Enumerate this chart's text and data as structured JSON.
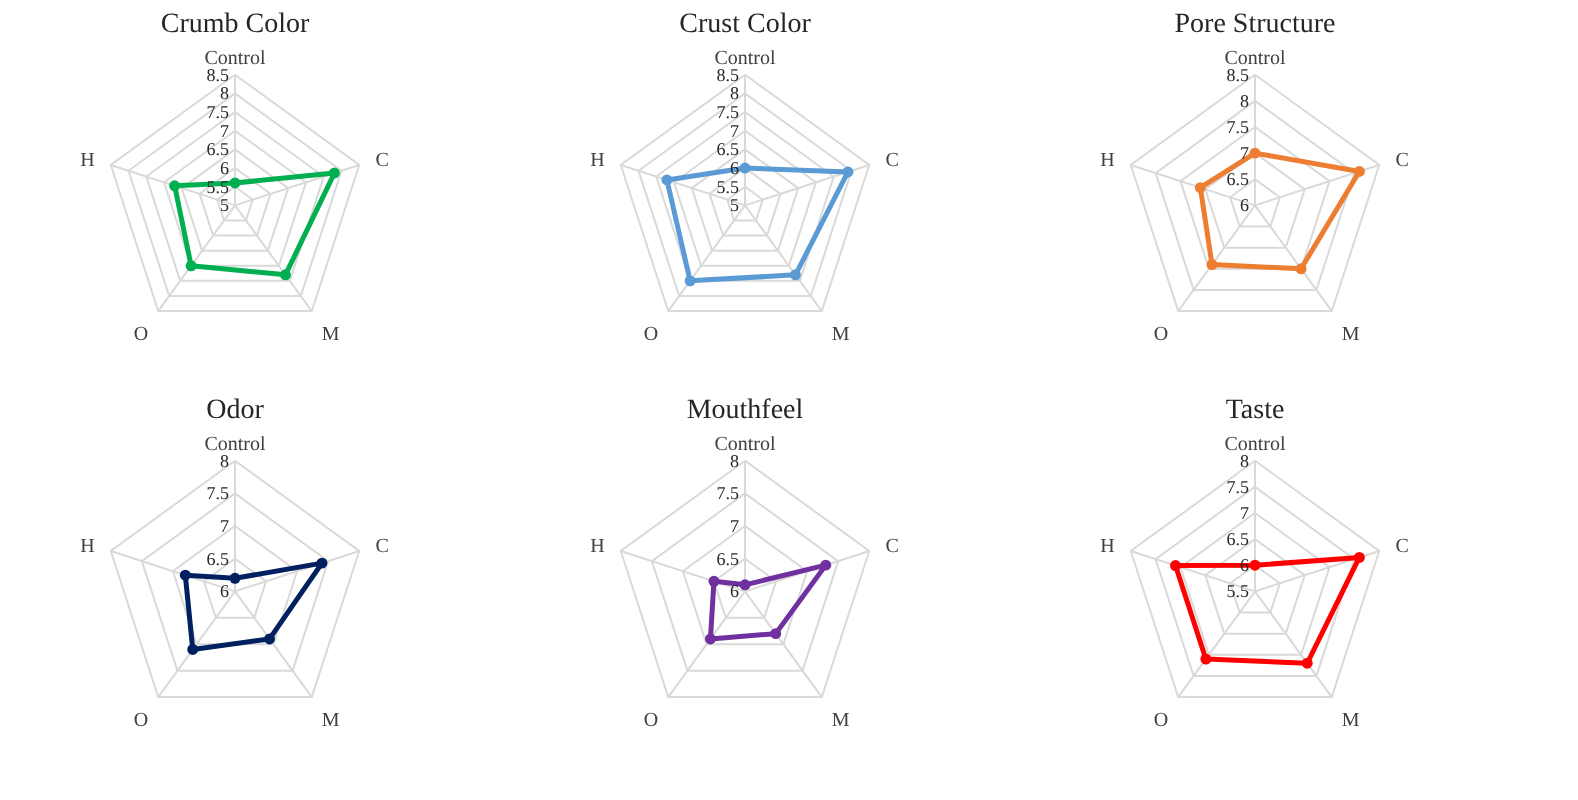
{
  "chart_data": [
    {
      "type": "radar",
      "title": "Crumb Color",
      "categories": [
        "Control",
        "C",
        "M",
        "O",
        "H"
      ],
      "series": [
        {
          "color": "#00b050",
          "values": [
            5.6,
            7.8,
            7.3,
            7.0,
            6.7
          ]
        }
      ],
      "ylim": [
        5,
        8.5
      ],
      "yticks": [
        5,
        5.5,
        6,
        6.5,
        7,
        7.5,
        8,
        8.5
      ],
      "grid": true,
      "marker": "circle"
    },
    {
      "type": "radar",
      "title": "Crust Color",
      "categories": [
        "Control",
        "C",
        "M",
        "O",
        "H"
      ],
      "series": [
        {
          "color": "#5b9bd5",
          "values": [
            6.0,
            7.9,
            7.3,
            7.5,
            7.2
          ]
        }
      ],
      "ylim": [
        5,
        8.5
      ],
      "yticks": [
        5,
        5.5,
        6,
        6.5,
        7,
        7.5,
        8,
        8.5
      ],
      "grid": true,
      "marker": "circle"
    },
    {
      "type": "radar",
      "title": "Pore Structure",
      "categories": [
        "Control",
        "C",
        "M",
        "O",
        "H"
      ],
      "series": [
        {
          "color": "#ed7d31",
          "values": [
            7.0,
            8.1,
            7.5,
            7.4,
            7.1
          ]
        }
      ],
      "ylim": [
        6,
        8.5
      ],
      "yticks": [
        6,
        6.5,
        7,
        7.5,
        8,
        8.5
      ],
      "grid": true,
      "marker": "circle"
    },
    {
      "type": "radar",
      "title": "Odor",
      "categories": [
        "Control",
        "C",
        "M",
        "O",
        "H"
      ],
      "series": [
        {
          "color": "#002060",
          "values": [
            6.2,
            7.4,
            6.9,
            7.1,
            6.8
          ]
        }
      ],
      "ylim": [
        6,
        8
      ],
      "yticks": [
        6,
        6.5,
        7,
        7.5,
        8
      ],
      "grid": true,
      "marker": "circle"
    },
    {
      "type": "radar",
      "title": "Mouthfeel",
      "categories": [
        "Control",
        "C",
        "M",
        "O",
        "H"
      ],
      "series": [
        {
          "color": "#7030a0",
          "values": [
            6.1,
            7.3,
            6.8,
            6.9,
            6.5
          ]
        }
      ],
      "ylim": [
        6,
        8
      ],
      "yticks": [
        6,
        6.5,
        7,
        7.5,
        8
      ],
      "grid": true,
      "marker": "circle"
    },
    {
      "type": "radar",
      "title": "Taste",
      "categories": [
        "Control",
        "C",
        "M",
        "O",
        "H"
      ],
      "series": [
        {
          "color": "#ff0000",
          "values": [
            6.0,
            7.6,
            7.2,
            7.1,
            7.1
          ]
        }
      ],
      "ylim": [
        5.5,
        8
      ],
      "yticks": [
        5.5,
        6,
        6.5,
        7,
        7.5,
        8
      ],
      "grid": true,
      "marker": "circle"
    }
  ]
}
